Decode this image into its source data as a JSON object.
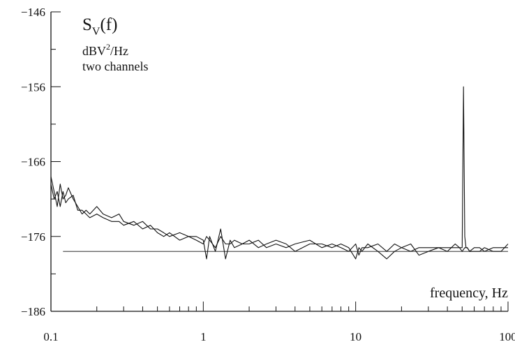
{
  "chart_data": {
    "type": "line",
    "title": "S_V(f)",
    "title_main": "S",
    "title_sub": "V",
    "title_tail": "(f)",
    "unit_label": {
      "pre": "dBV",
      "sup": "2",
      "post": "/Hz"
    },
    "annotation": "two channels",
    "xlabel": "frequency, Hz",
    "ylabel": "",
    "x_scale": "log",
    "xlim": [
      0.1,
      100
    ],
    "ylim": [
      -186,
      -146
    ],
    "x_ticks": [
      0.1,
      1,
      10,
      100
    ],
    "x_tick_labels": [
      "0.1",
      "1",
      "10",
      "100"
    ],
    "y_ticks": [
      -146,
      -156,
      -166,
      -176,
      -186
    ],
    "y_tick_labels": [
      "−146",
      "−156",
      "−166",
      "−176",
      "−186"
    ],
    "grid": false,
    "line_color": "#111111",
    "reference_level": -178,
    "series": [
      {
        "x": [
          0.1,
          0.105,
          0.11,
          0.115,
          0.12,
          0.125,
          0.13,
          0.14,
          0.15,
          0.16,
          0.17,
          0.18,
          0.2,
          0.22,
          0.25,
          0.28,
          0.3,
          0.35,
          0.4,
          0.45,
          0.5,
          0.55,
          0.6,
          0.7,
          0.8,
          0.9,
          1.0,
          1.05,
          1.1,
          1.2,
          1.3,
          1.4,
          1.5,
          1.6,
          1.8,
          2,
          2.3,
          2.6,
          3,
          3.5,
          4,
          5,
          6,
          7,
          8,
          9,
          10,
          10.5,
          11,
          12,
          14,
          16,
          18,
          20,
          23,
          26,
          30,
          35,
          40,
          45,
          48,
          50,
          51,
          52,
          53,
          54,
          56,
          60,
          65,
          70,
          80,
          90,
          100
        ],
        "values": [
          -168,
          -170,
          -172,
          -169,
          -171,
          -170.5,
          -169.5,
          -171,
          -172,
          -173,
          -172.5,
          -173,
          -172,
          -173,
          -173.5,
          -173,
          -174,
          -174.5,
          -174,
          -175,
          -175,
          -175.5,
          -176,
          -175.5,
          -176,
          -176.5,
          -177,
          -176,
          -176.5,
          -177.5,
          -176,
          -177,
          -177,
          -176.5,
          -177,
          -177,
          -176.5,
          -177.5,
          -177,
          -177.5,
          -177,
          -176.5,
          -177.5,
          -177,
          -177.5,
          -178,
          -177,
          -178.5,
          -177.5,
          -177.5,
          -177,
          -178,
          -177,
          -177.5,
          -178,
          -177.5,
          -177.5,
          -177.5,
          -177.5,
          -177.5,
          -177.5,
          -177.5,
          -156,
          -176,
          -177.5,
          -177.5,
          -178,
          -177.5,
          -177.5,
          -178,
          -177.5,
          -177.5,
          -177.5
        ]
      },
      {
        "x": [
          0.1,
          0.105,
          0.11,
          0.115,
          0.12,
          0.125,
          0.13,
          0.14,
          0.15,
          0.16,
          0.17,
          0.18,
          0.2,
          0.22,
          0.25,
          0.28,
          0.3,
          0.35,
          0.4,
          0.45,
          0.5,
          0.55,
          0.6,
          0.7,
          0.8,
          0.9,
          1.0,
          1.05,
          1.1,
          1.2,
          1.3,
          1.4,
          1.5,
          1.6,
          1.8,
          2,
          2.3,
          2.6,
          3,
          3.5,
          4,
          5,
          6,
          7,
          8,
          9,
          10,
          10.5,
          11,
          12,
          14,
          16,
          18,
          20,
          23,
          26,
          30,
          35,
          40,
          45,
          48,
          50,
          52,
          54,
          56,
          60,
          65,
          70,
          80,
          90,
          100
        ],
        "values": [
          -169,
          -171,
          -170,
          -172,
          -170,
          -171.5,
          -171,
          -170.5,
          -172.5,
          -172.5,
          -173,
          -173.5,
          -173,
          -173.5,
          -174,
          -174,
          -174.5,
          -174,
          -175,
          -174.5,
          -175.5,
          -176,
          -175.5,
          -176.5,
          -176,
          -176,
          -176.5,
          -179,
          -176,
          -178,
          -175,
          -179,
          -176.5,
          -177.5,
          -177,
          -176.5,
          -177.5,
          -177,
          -176.5,
          -177,
          -178,
          -177,
          -177,
          -177.5,
          -177,
          -177.5,
          -179,
          -177.5,
          -178,
          -177,
          -178,
          -179,
          -178,
          -177.5,
          -177,
          -178.5,
          -178,
          -177.5,
          -178,
          -177,
          -177.5,
          -178,
          -177.5,
          -177.5,
          -178,
          -178,
          -178,
          -177.5,
          -178,
          -178,
          -177
        ]
      }
    ]
  }
}
